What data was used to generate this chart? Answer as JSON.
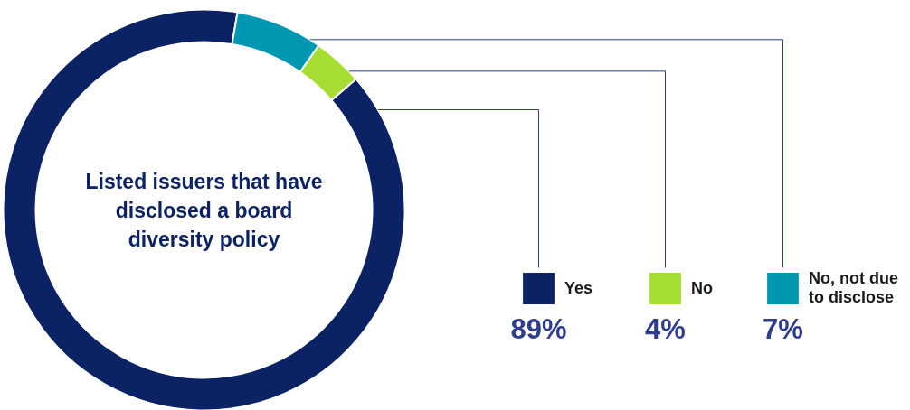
{
  "chart_data": {
    "type": "donut",
    "title": "Listed issuers that have disclosed a board diversity policy",
    "categories": [
      "Yes",
      "No",
      "No, not due to disclose"
    ],
    "values": [
      89,
      4,
      7
    ],
    "colors": [
      "#0b2265",
      "#a6dd32",
      "#0097b2"
    ],
    "value_labels": [
      "89%",
      "4%",
      "7%"
    ],
    "legend": "right"
  }
}
